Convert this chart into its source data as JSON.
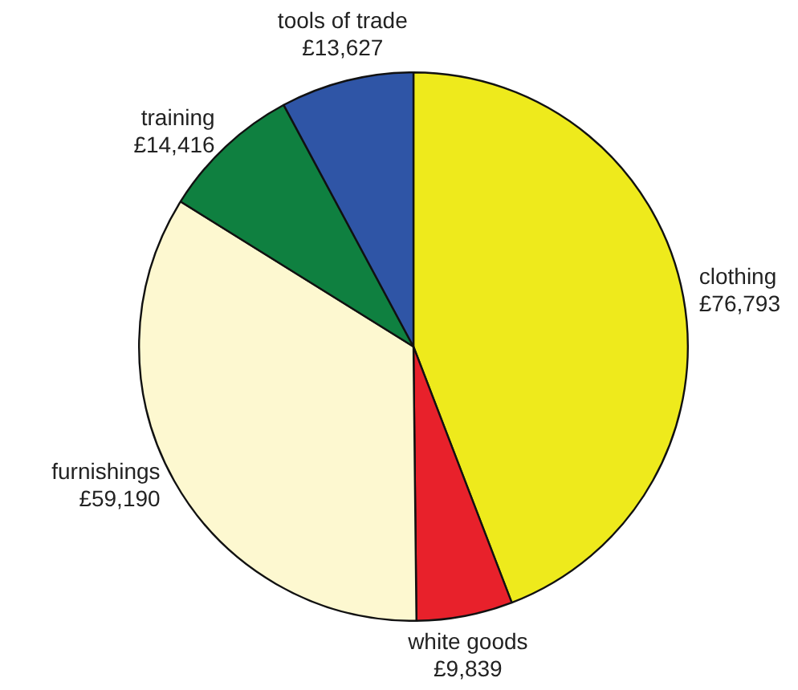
{
  "chart_data": {
    "type": "pie",
    "categories": [
      "clothing",
      "white goods",
      "furnishings",
      "training",
      "tools of trade"
    ],
    "values": [
      76793,
      9839,
      59190,
      14416,
      13627
    ],
    "colors": [
      "#eeea1c",
      "#e8212b",
      "#fdf8d0",
      "#0f8040",
      "#2f55a6"
    ],
    "value_labels": [
      "£76,793",
      "£9,839",
      "£59,190",
      "£14,416",
      "£13,627"
    ],
    "legend": false
  }
}
